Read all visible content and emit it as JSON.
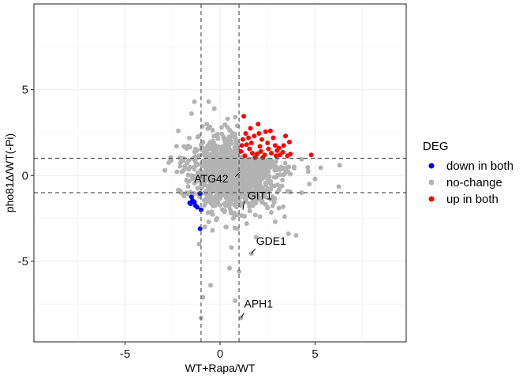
{
  "chart_data": {
    "type": "scatter",
    "title": "",
    "xlabel": "WT+Rapa/WT",
    "ylabel": "pho81Δ/WT(-Pi)",
    "xlim": [
      -9.8,
      9.8
    ],
    "ylim": [
      -9.7,
      10.0
    ],
    "x_ticks": [
      -5,
      0,
      5
    ],
    "y_ticks": [
      -5,
      0,
      5
    ],
    "x_tick_labels": [
      "-5",
      "0",
      "5"
    ],
    "y_tick_labels": [
      "-5",
      "0",
      "5"
    ],
    "grid": true,
    "thresholds": {
      "x": [
        -1,
        1
      ],
      "y": [
        -1,
        1
      ]
    },
    "legend": {
      "title": "DEG",
      "placement": "right",
      "entries": [
        {
          "label": "down in both",
          "color": "#0000ff"
        },
        {
          "label": "no-change",
          "color": "#b3b3b3"
        },
        {
          "label": "up in both",
          "color": "#ff0000"
        }
      ]
    },
    "series": [
      {
        "name": "down in both",
        "color": "#0000ff",
        "points": [
          [
            -1.5,
            -1.25
          ],
          [
            -1.45,
            -1.45
          ],
          [
            -1.55,
            -1.65
          ],
          [
            -1.3,
            -1.75
          ],
          [
            -1.2,
            -1.85
          ],
          [
            -1.05,
            -1.05
          ],
          [
            -1.0,
            -2.0
          ],
          [
            -1.05,
            -3.1
          ],
          [
            -1.6,
            -1.6
          ],
          [
            -1.35,
            -1.55
          ]
        ]
      },
      {
        "name": "up in both",
        "color": "#ff0000",
        "points": [
          [
            1.25,
            3.45
          ],
          [
            2.0,
            3.0
          ],
          [
            2.65,
            2.6
          ],
          [
            3.45,
            2.3
          ],
          [
            3.65,
            1.95
          ],
          [
            4.8,
            1.2
          ],
          [
            1.6,
            2.75
          ],
          [
            1.8,
            2.3
          ],
          [
            2.2,
            2.1
          ],
          [
            2.5,
            1.9
          ],
          [
            2.9,
            1.75
          ],
          [
            3.1,
            1.6
          ],
          [
            3.3,
            1.35
          ],
          [
            3.7,
            1.25
          ],
          [
            1.2,
            2.1
          ],
          [
            1.4,
            1.8
          ],
          [
            1.55,
            1.55
          ],
          [
            1.7,
            1.3
          ],
          [
            1.95,
            1.25
          ],
          [
            2.15,
            1.4
          ],
          [
            2.35,
            1.2
          ],
          [
            2.7,
            1.3
          ],
          [
            2.95,
            1.15
          ],
          [
            3.15,
            1.2
          ],
          [
            1.1,
            1.4
          ],
          [
            1.3,
            1.15
          ],
          [
            1.5,
            2.2
          ],
          [
            2.1,
            1.7
          ],
          [
            2.55,
            1.55
          ],
          [
            2.8,
            2.2
          ],
          [
            3.0,
            1.45
          ],
          [
            1.85,
            1.05
          ],
          [
            1.35,
            2.45
          ],
          [
            1.65,
            1.9
          ],
          [
            2.4,
            2.55
          ],
          [
            3.35,
            1.75
          ],
          [
            1.15,
            1.75
          ],
          [
            2.05,
            2.45
          ],
          [
            2.25,
            1.05
          ],
          [
            3.55,
            1.15
          ]
        ]
      },
      {
        "name": "no-change",
        "color": "#b3b3b3",
        "points": [
          [
            1.1,
            -8.3
          ],
          [
            1.0,
            -5.6
          ],
          [
            1.65,
            -4.55
          ],
          [
            0.8,
            -7.3
          ],
          [
            0.5,
            -5.4
          ],
          [
            -0.9,
            -7.1
          ],
          [
            -1.0,
            -8.3
          ],
          [
            4.0,
            -3.5
          ],
          [
            3.6,
            -3.4
          ],
          [
            0.9,
            -3.1
          ],
          [
            0.6,
            -4.2
          ],
          [
            -1.1,
            -4.0
          ],
          [
            -0.5,
            -6.4
          ],
          [
            -0.6,
            4.3
          ],
          [
            -1.35,
            4.3
          ],
          [
            -1.5,
            3.6
          ],
          [
            -2.2,
            2.6
          ],
          [
            -2.6,
            1.05
          ],
          [
            -2.7,
            0.75
          ],
          [
            6.3,
            0.6
          ],
          [
            6.25,
            -0.65
          ],
          [
            5.3,
            0.45
          ],
          [
            5.0,
            -0.2
          ],
          [
            4.7,
            -0.5
          ],
          [
            4.3,
            -1.0
          ],
          [
            3.1,
            -1.9
          ],
          [
            -2.2,
            -0.85
          ],
          [
            -2.9,
            0.3
          ],
          [
            -1.9,
            -1.2
          ],
          [
            -0.3,
            3.9
          ],
          [
            0.8,
            3.4
          ],
          [
            0.4,
            3.3
          ],
          [
            0.9,
            2.9
          ],
          [
            -0.7,
            3.0
          ],
          [
            3.4,
            -2.4
          ],
          [
            2.9,
            -2.7
          ],
          [
            1.9,
            -3.6
          ],
          [
            0.7,
            -2.5
          ],
          [
            -0.4,
            -3.2
          ],
          [
            -0.8,
            -3.0
          ],
          [
            -0.2,
            -2.6
          ],
          [
            0.3,
            -3.0
          ],
          [
            1.4,
            -2.8
          ],
          [
            2.1,
            -2.4
          ],
          [
            2.5,
            -1.9
          ],
          [
            4.3,
            0.95
          ],
          [
            3.9,
            0.5
          ],
          [
            3.4,
            0.1
          ],
          [
            -1.1,
            2.3
          ],
          [
            -1.9,
            1.7
          ]
        ],
        "cloud": {
          "center_x": 0.7,
          "center_y": 0.15,
          "approx_count": 1500,
          "x_spread": 1.1,
          "y_spread": 0.95
        }
      }
    ],
    "annotations": [
      {
        "label": "ATG42",
        "x": 1.05,
        "y": 0.2
      },
      {
        "label": "GIT1",
        "x": 1.2,
        "y": -2.0
      },
      {
        "label": "GDE1",
        "x": 1.65,
        "y": -4.55
      },
      {
        "label": "APH1",
        "x": 1.1,
        "y": -8.3
      }
    ]
  }
}
